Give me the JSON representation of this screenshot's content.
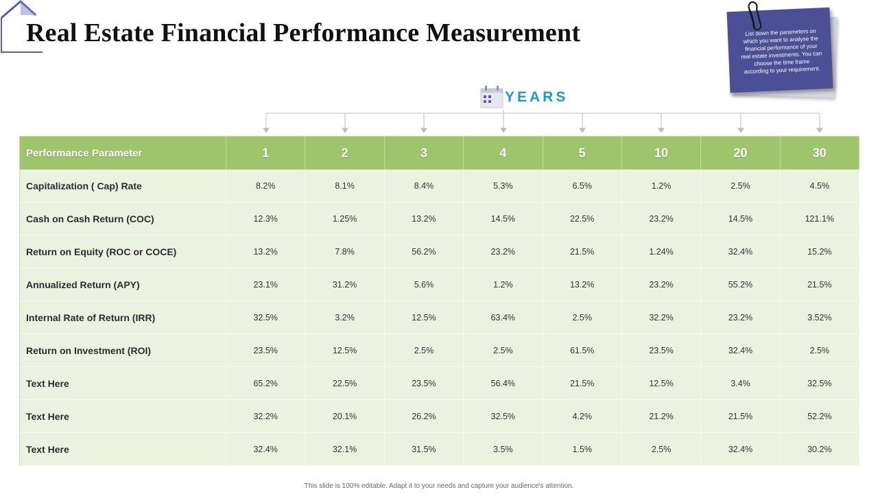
{
  "title": "Real Estate Financial Performance Measurement",
  "note": {
    "text": "List down the parameters on which you want to analyse the financial performance of your real estate investments. You can choose the time frame according to your requirement."
  },
  "years_label": "YEARS",
  "table": {
    "param_header": "Performance Parameter",
    "years": [
      "1",
      "2",
      "3",
      "4",
      "5",
      "10",
      "20",
      "30"
    ],
    "rows": [
      {
        "label": "Capitalization ( Cap) Rate",
        "values": [
          "8.2%",
          "8.1%",
          "8.4%",
          "5.3%",
          "6.5%",
          "1.2%",
          "2.5%",
          "4.5%"
        ]
      },
      {
        "label": "Cash on Cash Return (COC)",
        "values": [
          "12.3%",
          "1.25%",
          "13.2%",
          "14.5%",
          "22.5%",
          "23.2%",
          "14.5%",
          "121.1%"
        ]
      },
      {
        "label": "Return on Equity (ROC or COCE)",
        "values": [
          "13.2%",
          "7.8%",
          "56.2%",
          "23.2%",
          "21.5%",
          "1.24%",
          "32.4%",
          "15.2%"
        ]
      },
      {
        "label": "Annualized Return (APY)",
        "values": [
          "23.1%",
          "31.2%",
          "5.6%",
          "1.2%",
          "13.2%",
          "23.2%",
          "55.2%",
          "21.5%"
        ]
      },
      {
        "label": "Internal Rate of Return (IRR)",
        "values": [
          "32.5%",
          "3.2%",
          "12.5%",
          "63.4%",
          "2.5%",
          "32.2%",
          "23.2%",
          "3.52%"
        ]
      },
      {
        "label": "Return on Investment (ROI)",
        "values": [
          "23.5%",
          "12.5%",
          "2.5%",
          "2.5%",
          "61.5%",
          "23.5%",
          "32.4%",
          "2.5%"
        ]
      },
      {
        "label": "Text Here",
        "values": [
          "65.2%",
          "22.5%",
          "23.5%",
          "56.4%",
          "21.5%",
          "12.5%",
          "3.4%",
          "32.5%"
        ]
      },
      {
        "label": "Text Here",
        "values": [
          "32.2%",
          "20.1%",
          "26.2%",
          "32.5%",
          "4.2%",
          "21.2%",
          "21.5%",
          "52.2%"
        ]
      },
      {
        "label": "Text Here",
        "values": [
          "32.4%",
          "32.1%",
          "31.5%",
          "3.5%",
          "1.5%",
          "2.5%",
          "32.4%",
          "30.2%"
        ]
      }
    ]
  },
  "footer": "This slide is 100% editable. Adapt it to your needs and capture your audience's attention.",
  "colors": {
    "header_green": "#9ec56c",
    "body_green": "#ebf2e0",
    "note_blue": "#4a4f96",
    "years_teal": "#1d9bbd",
    "house_outline": "#5b5ea6"
  }
}
